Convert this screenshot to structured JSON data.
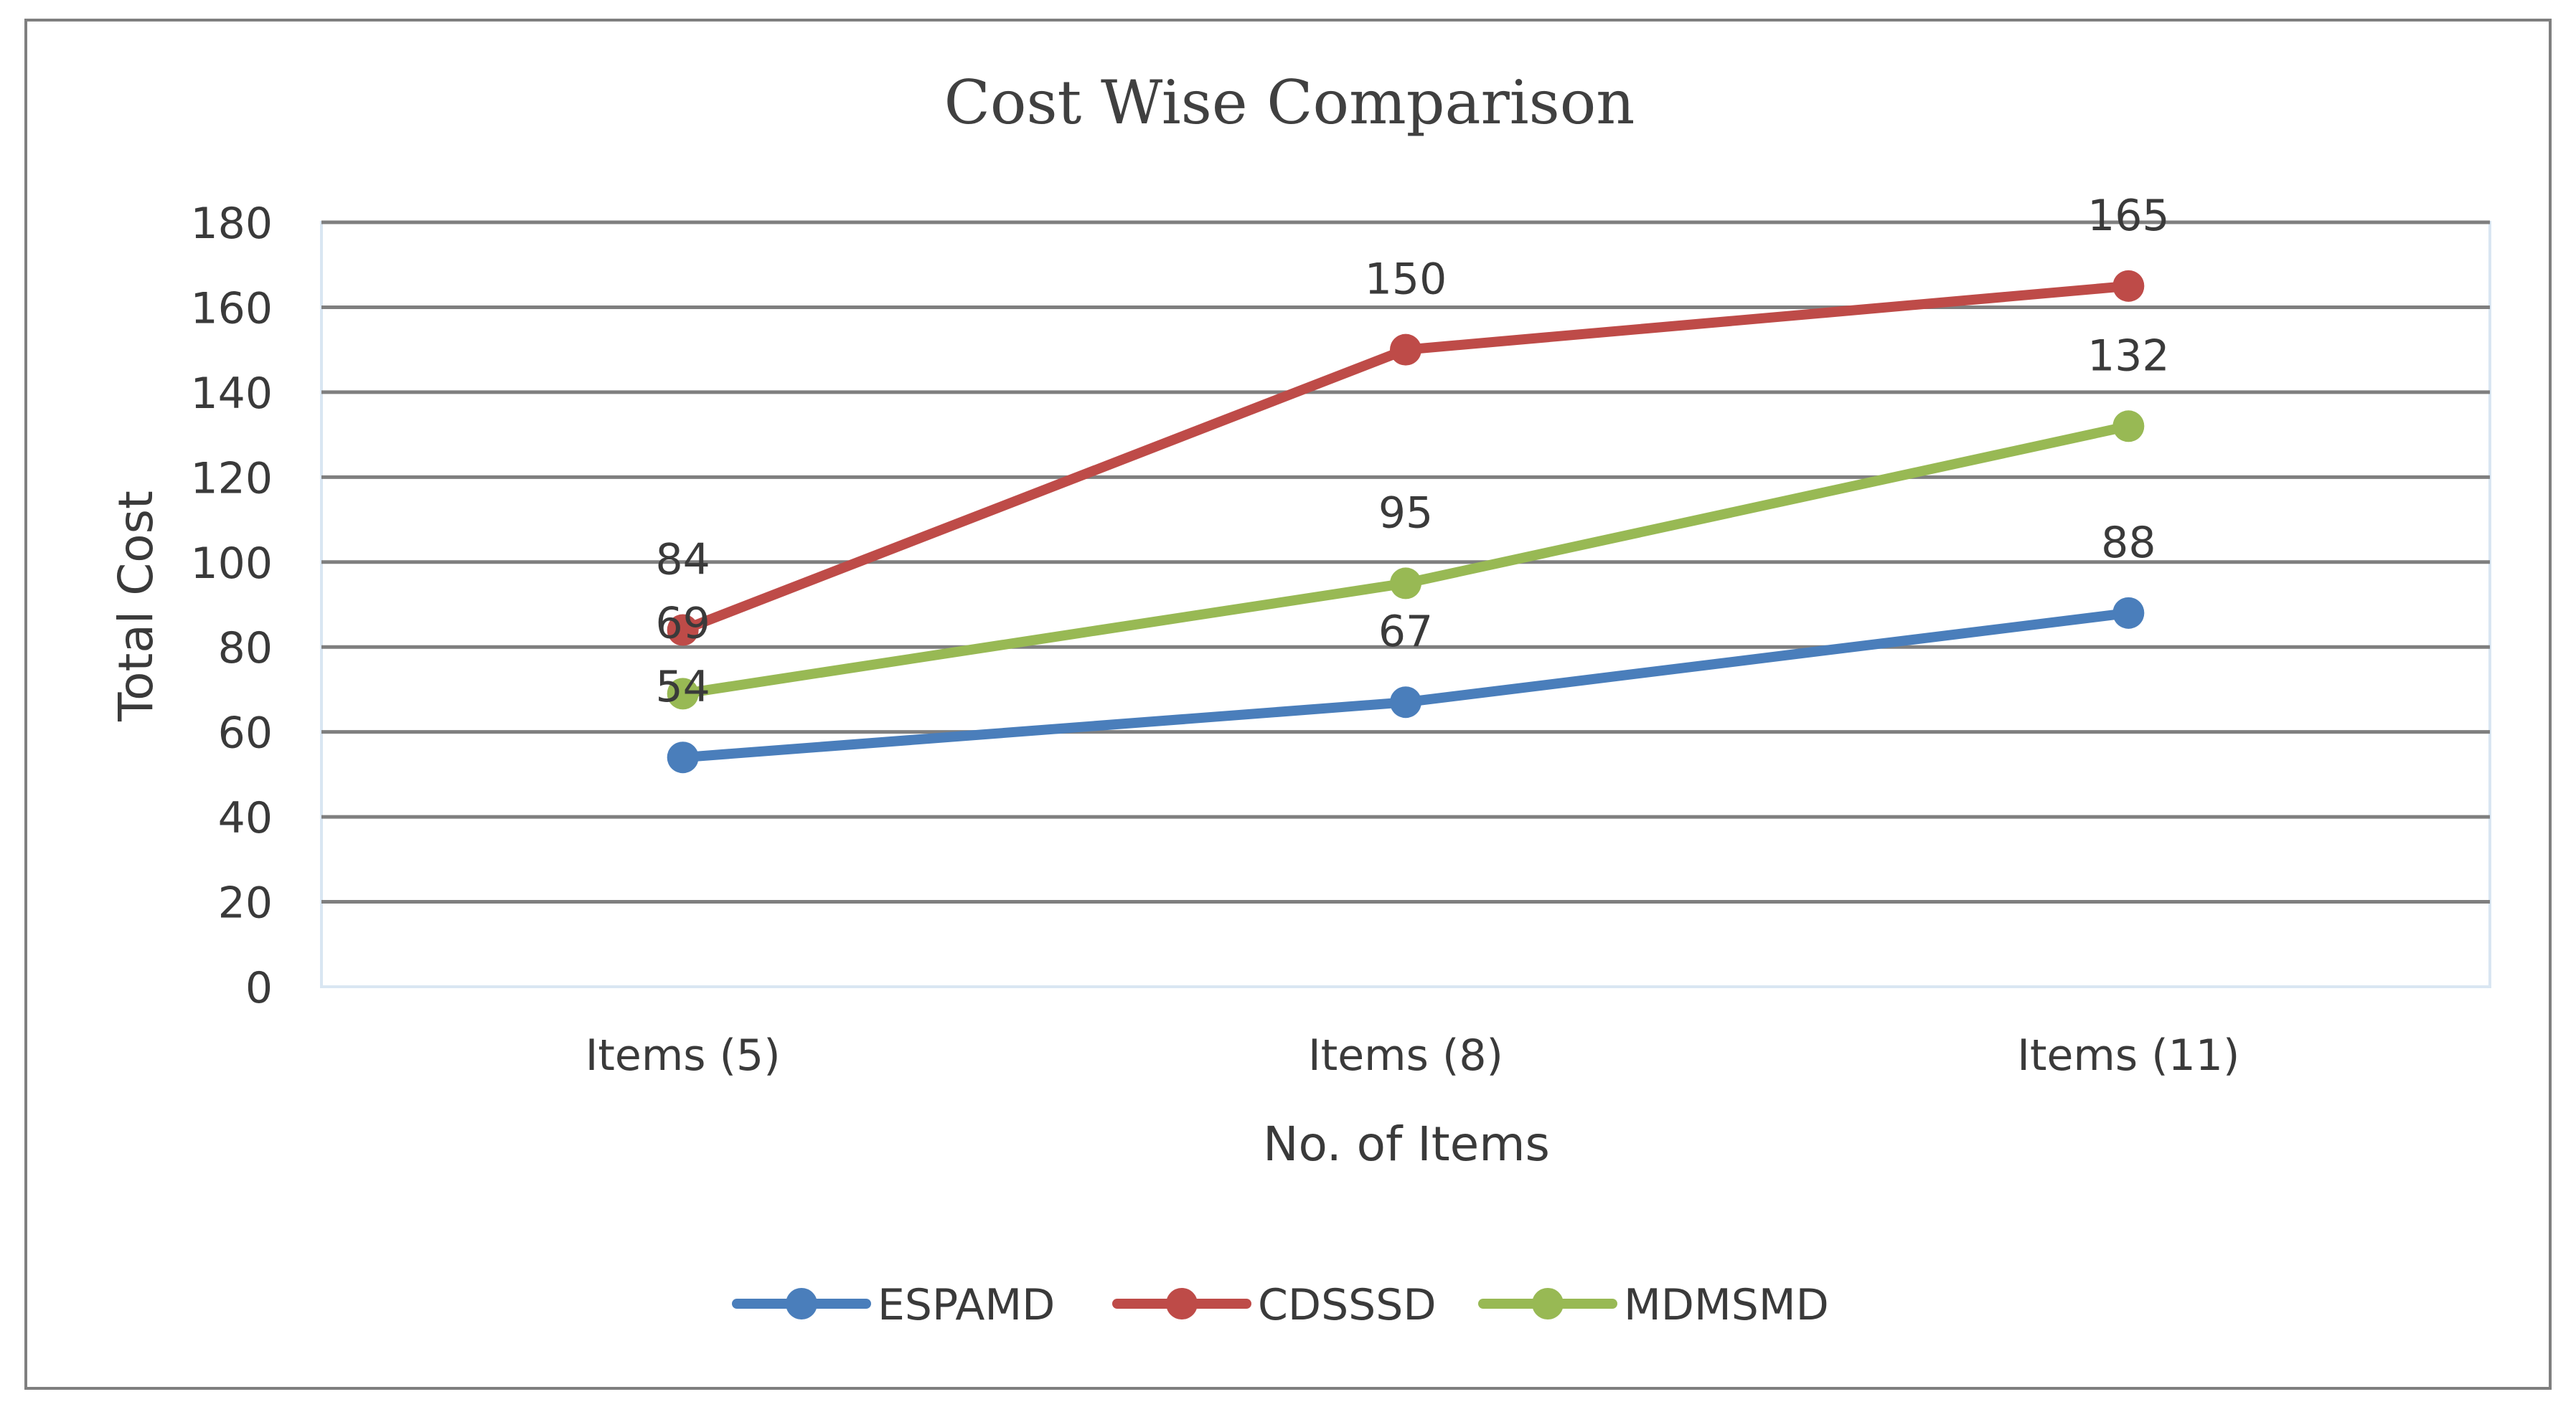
{
  "chart_data": {
    "type": "line",
    "title": "Cost Wise Comparison",
    "xlabel": "No. of Items",
    "ylabel": "Total Cost",
    "categories": [
      "Items (5)",
      "Items (8)",
      "Items (11)"
    ],
    "ylim": [
      0,
      180
    ],
    "yticks": [
      0,
      20,
      40,
      60,
      80,
      100,
      120,
      140,
      160,
      180
    ],
    "grid": true,
    "legend_position": "bottom",
    "series": [
      {
        "name": "ESPAMD",
        "color": "#4a7ebb",
        "values": [
          54,
          67,
          88
        ],
        "label_placement": "above"
      },
      {
        "name": "CDSSSD",
        "color": "#be4b48",
        "values": [
          84,
          150,
          165
        ],
        "label_placement": "above"
      },
      {
        "name": "MDMSMD",
        "color": "#98b954",
        "values": [
          69,
          95,
          132
        ],
        "label_placement": "above"
      }
    ]
  }
}
